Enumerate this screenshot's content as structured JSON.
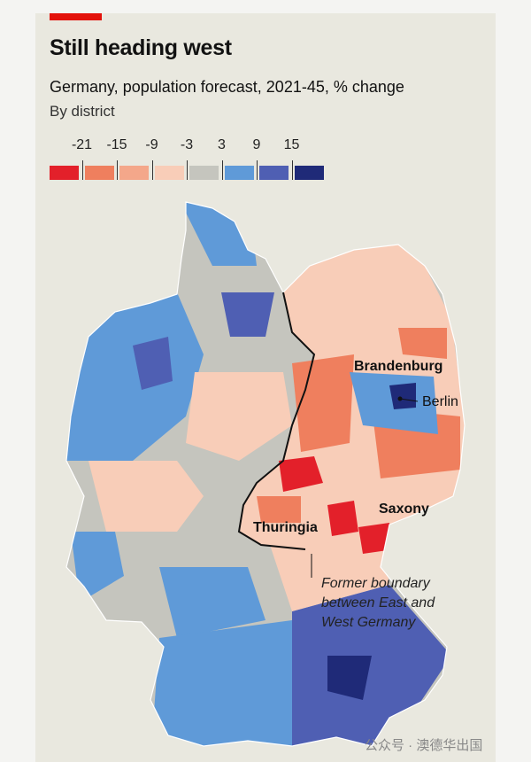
{
  "title": "Still heading west",
  "subtitle": "Germany, population forecast, 2021-45, % change",
  "subtitle2": "By district",
  "legend": {
    "ticks": [
      "-21",
      "-15",
      "-9",
      "-3",
      "3",
      "9",
      "15"
    ],
    "colors": [
      "#e3202a",
      "#ef7f5e",
      "#f4a78a",
      "#f8cdb8",
      "#c5c5be",
      "#5f9ad8",
      "#4f5fb3",
      "#1f2a78"
    ]
  },
  "labels": {
    "brandenburg": "Brandenburg",
    "berlin": "Berlin",
    "saxony": "Saxony",
    "thuringia": "Thuringia",
    "boundary_note": [
      "Former boundary",
      "between East and",
      "West Germany"
    ]
  },
  "watermark": "公众号 · 澳德华出国"
}
